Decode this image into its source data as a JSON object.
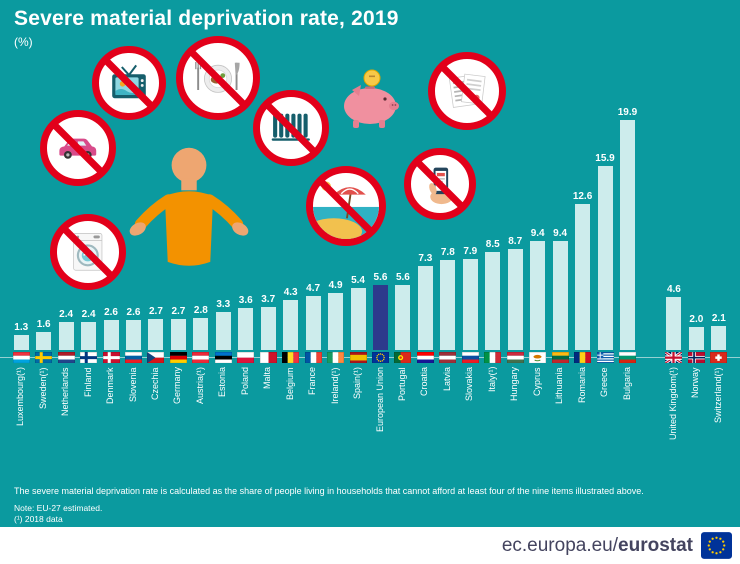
{
  "title": "Severe material deprivation rate, 2019",
  "subtitle": "(%)",
  "notes": {
    "definition": "The severe material deprivation rate is calculated as the share of people living in households that cannot afford at least four of the nine items illustrated above.",
    "note1": "Note: EU-27 estimated.",
    "note2": "(¹) 2018 data"
  },
  "footer": {
    "url_prefix": "ec.europa.eu/",
    "url_bold": "eurostat"
  },
  "colors": {
    "background": "#0b9a9f",
    "bar": "#cdecec",
    "eu_bar": "#2d3a8c",
    "prohibition_red": "#e2001a",
    "person_shirt_orange": "#f39200",
    "footer_text": "#44445f"
  },
  "deprivation_items": [
    {
      "name": "washing-machine",
      "prohibited": true
    },
    {
      "name": "car",
      "prohibited": true
    },
    {
      "name": "television",
      "prohibited": true
    },
    {
      "name": "protein-meal",
      "prohibited": true
    },
    {
      "name": "heating-radiator",
      "prohibited": true
    },
    {
      "name": "unexpected-expenses-piggy-bank",
      "prohibited": false
    },
    {
      "name": "paying-bills",
      "prohibited": true
    },
    {
      "name": "one-week-holiday",
      "prohibited": true
    },
    {
      "name": "telephone",
      "prohibited": true
    }
  ],
  "chart_data": {
    "type": "bar",
    "title": "Severe material deprivation rate, 2019",
    "unit": "%",
    "ylim": [
      0,
      20
    ],
    "grid": false,
    "legend": null,
    "eu_index": 16,
    "gap_before_index": 28,
    "categories": [
      "Luxembourg(¹)",
      "Sweden(¹)",
      "Netherlands",
      "Finland",
      "Denmark",
      "Slovenia",
      "Czechia",
      "Germany",
      "Austria(¹)",
      "Estonia",
      "Poland",
      "Malta",
      "Belgium",
      "France",
      "Ireland(¹)",
      "Spain(¹)",
      "European Union",
      "Portugal",
      "Croatia",
      "Latvia",
      "Slovakia",
      "Italy(¹)",
      "Hungary",
      "Cyprus",
      "Lithuania",
      "Romania",
      "Greece",
      "Bulgaria",
      "United Kingdom(¹)",
      "Norway",
      "Switzerland(¹)"
    ],
    "values": [
      1.3,
      1.6,
      2.4,
      2.4,
      2.6,
      2.6,
      2.7,
      2.7,
      2.8,
      3.3,
      3.6,
      3.7,
      4.3,
      4.7,
      4.9,
      5.4,
      5.6,
      5.6,
      7.3,
      7.8,
      7.9,
      8.5,
      8.7,
      9.4,
      9.4,
      12.6,
      15.9,
      19.9,
      4.6,
      2.0,
      2.1
    ],
    "flags": [
      {
        "t": "h",
        "c": [
          "#ef3340",
          "#ffffff",
          "#00a3e0"
        ]
      },
      {
        "t": "cross",
        "bg": "#006aa7",
        "cr": "#fecc02"
      },
      {
        "t": "h",
        "c": [
          "#ae1c28",
          "#ffffff",
          "#21468b"
        ]
      },
      {
        "t": "cross",
        "bg": "#ffffff",
        "cr": "#003580"
      },
      {
        "t": "cross",
        "bg": "#c8102e",
        "cr": "#ffffff"
      },
      {
        "t": "h",
        "c": [
          "#ffffff",
          "#005da4",
          "#ed1c24"
        ]
      },
      {
        "t": "s",
        "k": "cz"
      },
      {
        "t": "h",
        "c": [
          "#000000",
          "#dd0000",
          "#ffce00"
        ]
      },
      {
        "t": "h",
        "c": [
          "#ed2939",
          "#ffffff",
          "#ed2939"
        ]
      },
      {
        "t": "h",
        "c": [
          "#0072ce",
          "#000000",
          "#ffffff"
        ]
      },
      {
        "t": "h",
        "c": [
          "#ffffff",
          "#dc143c"
        ]
      },
      {
        "t": "v",
        "c": [
          "#ffffff",
          "#cf142b"
        ]
      },
      {
        "t": "v",
        "c": [
          "#000000",
          "#fdda24",
          "#ef3340"
        ]
      },
      {
        "t": "v",
        "c": [
          "#0055a4",
          "#ffffff",
          "#ef4135"
        ]
      },
      {
        "t": "v",
        "c": [
          "#169b62",
          "#ffffff",
          "#ff883e"
        ]
      },
      {
        "t": "s",
        "k": "es"
      },
      {
        "t": "s",
        "k": "eu"
      },
      {
        "t": "s",
        "k": "pt"
      },
      {
        "t": "h",
        "c": [
          "#ff0000",
          "#ffffff",
          "#171796"
        ]
      },
      {
        "t": "h",
        "c": [
          "#9e3039",
          "#ffffff",
          "#9e3039"
        ]
      },
      {
        "t": "h",
        "c": [
          "#ffffff",
          "#0b4ea2",
          "#ee1c25"
        ]
      },
      {
        "t": "v",
        "c": [
          "#009246",
          "#ffffff",
          "#ce2b37"
        ]
      },
      {
        "t": "h",
        "c": [
          "#cd2a3e",
          "#ffffff",
          "#436f4d"
        ]
      },
      {
        "t": "s",
        "k": "cy"
      },
      {
        "t": "h",
        "c": [
          "#fdb913",
          "#006a44",
          "#c1272d"
        ]
      },
      {
        "t": "v",
        "c": [
          "#002b7f",
          "#fcd116",
          "#ce1126"
        ]
      },
      {
        "t": "s",
        "k": "gr"
      },
      {
        "t": "h",
        "c": [
          "#ffffff",
          "#00966e",
          "#d62612"
        ]
      },
      {
        "t": "s",
        "k": "uk"
      },
      {
        "t": "s",
        "k": "no"
      },
      {
        "t": "s",
        "k": "ch"
      }
    ]
  }
}
